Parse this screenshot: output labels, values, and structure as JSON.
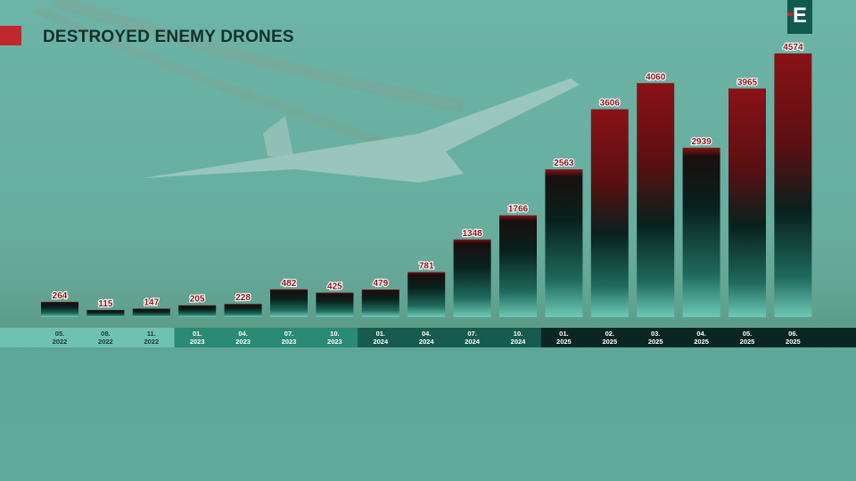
{
  "title": "DESTROYED ENEMY DRONES",
  "logo": {
    "letter": "E",
    "icon": "brand-logo-icon"
  },
  "colors": {
    "accent": "#c0282d",
    "bar_top": "#8a1217",
    "bar_dark": "#08211d",
    "bar_light": "#6ec9b6",
    "background": "#5fa99c"
  },
  "chart_data": {
    "type": "bar",
    "title": "DESTROYED ENEMY DRONES",
    "xlabel": "",
    "ylabel": "",
    "categories": [
      "05.\n2022",
      "08.\n2022",
      "11.\n2022",
      "01.\n2023",
      "04.\n2023",
      "07.\n2023",
      "10.\n2023",
      "01.\n2024",
      "04.\n2024",
      "07.\n2024",
      "10.\n2024",
      "01.\n2025",
      "02.\n2025",
      "03.\n2025",
      "04.\n2025",
      "05.\n2025",
      "06.\n2025"
    ],
    "values": [
      264,
      115,
      147,
      205,
      228,
      482,
      425,
      479,
      781,
      1348,
      1766,
      2563,
      3606,
      4060,
      2939,
      3965,
      4574
    ],
    "data_labels": [
      "264",
      "115",
      "147",
      "205",
      "228",
      "482",
      "425",
      "479",
      "781",
      "1348",
      "1766",
      "2563",
      "3606",
      "4060",
      "2939",
      "3965",
      "4574"
    ],
    "ylim": [
      0,
      4574
    ],
    "grid": false,
    "legend": "none"
  }
}
